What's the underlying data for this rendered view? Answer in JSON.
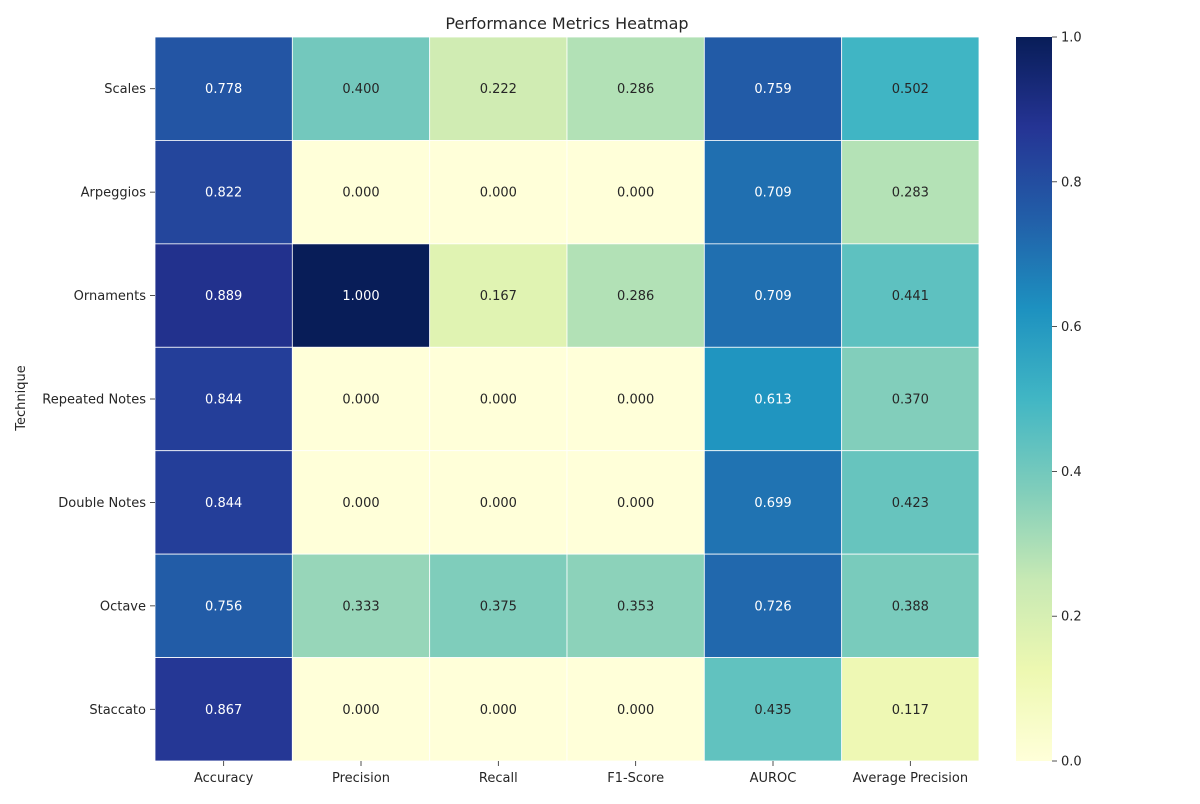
{
  "chart_data": {
    "type": "heatmap",
    "title": "Performance Metrics Heatmap",
    "xlabel": "",
    "ylabel": "Technique",
    "columns": [
      "Accuracy",
      "Precision",
      "Recall",
      "F1-Score",
      "AUROC",
      "Average Precision"
    ],
    "rows": [
      "Scales",
      "Arpeggios",
      "Ornaments",
      "Repeated Notes",
      "Double Notes",
      "Octave",
      "Staccato"
    ],
    "values": [
      [
        0.778,
        0.4,
        0.222,
        0.286,
        0.759,
        0.502
      ],
      [
        0.822,
        0.0,
        0.0,
        0.0,
        0.709,
        0.283
      ],
      [
        0.889,
        1.0,
        0.167,
        0.286,
        0.709,
        0.441
      ],
      [
        0.844,
        0.0,
        0.0,
        0.0,
        0.613,
        0.37
      ],
      [
        0.844,
        0.0,
        0.0,
        0.0,
        0.699,
        0.423
      ],
      [
        0.756,
        0.333,
        0.375,
        0.353,
        0.726,
        0.388
      ],
      [
        0.867,
        0.0,
        0.0,
        0.0,
        0.435,
        0.117
      ]
    ],
    "value_format": "0.000",
    "colormap": "YlGnBu",
    "colorbar": {
      "range": [
        0,
        1
      ],
      "ticks": [
        "0.0",
        "0.2",
        "0.4",
        "0.6",
        "0.8",
        "1.0"
      ]
    },
    "colors": {
      "cell_border": "#ffffff",
      "text_dark": "#262626",
      "text_light": "#ffffff"
    }
  }
}
